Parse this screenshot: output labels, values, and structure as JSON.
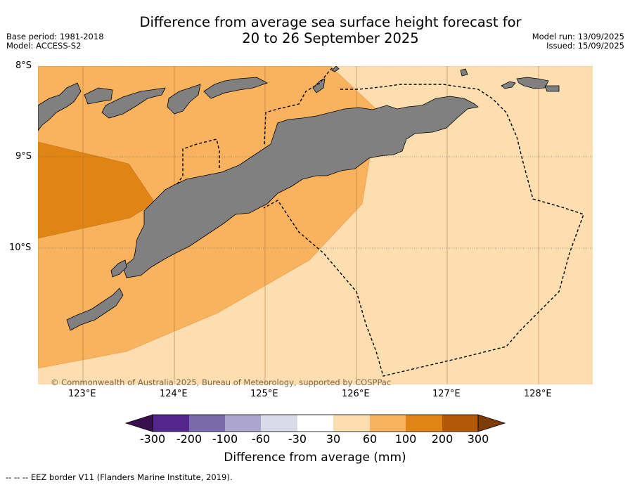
{
  "header": {
    "title_line1": "Difference from average sea surface height forecast for",
    "title_line2": "20 to 26 September 2025",
    "base_period": "Base period: 1981-2018",
    "model": "Model: ACCESS-S2",
    "model_run": "Model run: 13/09/2025",
    "issued": "Issued: 15/09/2025"
  },
  "map": {
    "lat_labels": [
      "8°S",
      "9°S",
      "10°S"
    ],
    "lon_labels": [
      "123°E",
      "124°E",
      "125°E",
      "126°E",
      "127°E",
      "128°E"
    ],
    "copyright": "© Commonwealth of Australia 2025, Bureau of Meteorology, supported by COSPPac",
    "colors": {
      "land": "#808080",
      "band_30_60": "#fddeb0",
      "band_60_100": "#f9b25d",
      "band_100_200": "#e08416"
    }
  },
  "colorbar": {
    "tick_labels": [
      "-300",
      "-200",
      "-100",
      "-60",
      "-30",
      "30",
      "60",
      "100",
      "200",
      "300"
    ],
    "colors": [
      "#3b0f4f",
      "#54278f",
      "#7a6aab",
      "#aca6cf",
      "#d9dbeb",
      "#ffffff",
      "#fddeb0",
      "#f9b25d",
      "#e08416",
      "#b35806",
      "#7f3b08"
    ],
    "label": "Difference from average (mm)"
  },
  "footer": {
    "legend_text": "--  --  -- EEZ border V11 (Flanders Marine Institute, 2019)."
  }
}
